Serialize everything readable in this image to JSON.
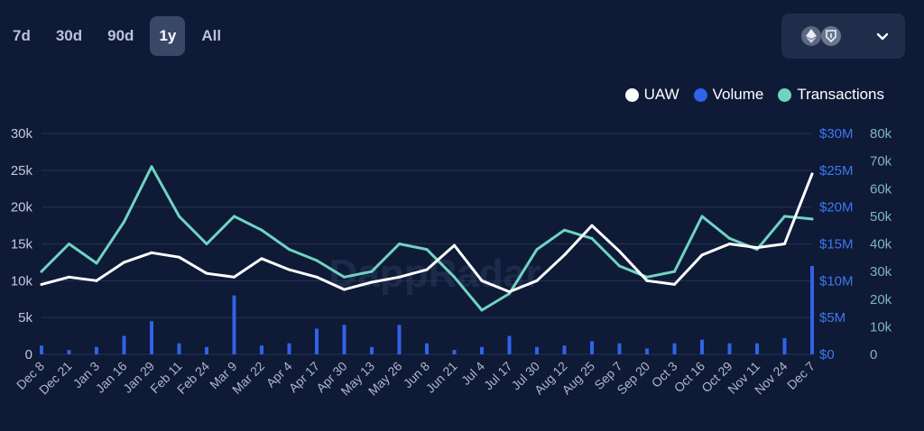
{
  "ranges": [
    {
      "label": "7d",
      "active": false
    },
    {
      "label": "30d",
      "active": false
    },
    {
      "label": "90d",
      "active": false
    },
    {
      "label": "1y",
      "active": true
    },
    {
      "label": "All",
      "active": false
    }
  ],
  "chain_icons": [
    "ethereum-icon",
    "shield-icon"
  ],
  "watermark": "DappRadar",
  "colors": {
    "uaw": "#ffffff",
    "volume": "#2f63e8",
    "transactions": "#6fd3c2",
    "background": "#0e1a36"
  },
  "chart_data": {
    "type": "line",
    "legend": [
      "UAW",
      "Volume",
      "Transactions"
    ],
    "legend_position": "top-right",
    "grid": true,
    "x_labels": [
      "Dec 8",
      "Dec 21",
      "Jan 3",
      "Jan 16",
      "Jan 29",
      "Feb 11",
      "Feb 24",
      "Mar 9",
      "Mar 22",
      "Apr 4",
      "Apr 17",
      "Apr 30",
      "May 13",
      "May 26",
      "Jun 8",
      "Jun 21",
      "Jul 4",
      "Jul 17",
      "Jul 30",
      "Aug 12",
      "Aug 25",
      "Sep 7",
      "Sep 20",
      "Oct 3",
      "Oct 16",
      "Oct 29",
      "Nov 11",
      "Nov 24",
      "Dec 7"
    ],
    "y_left": {
      "ticks": [
        "0",
        "5k",
        "10k",
        "15k",
        "20k",
        "25k",
        "30k"
      ],
      "range": [
        0,
        30000
      ]
    },
    "y_right_volume": {
      "ticks": [
        "$0",
        "$5M",
        "$10M",
        "$15M",
        "$20M",
        "$25M",
        "$30M"
      ],
      "range": [
        0,
        30000000
      ]
    },
    "y_right_transactions": {
      "ticks": [
        "0",
        "10k",
        "20k",
        "30k",
        "40k",
        "50k",
        "60k",
        "70k",
        "80k"
      ],
      "range": [
        0,
        80000
      ]
    },
    "series": [
      {
        "name": "UAW",
        "axis": "left",
        "x_index": [
          0,
          1,
          2,
          3,
          4,
          5,
          6,
          7,
          8,
          9,
          10,
          11,
          12,
          13,
          14,
          15,
          16,
          17,
          18,
          19,
          20,
          21,
          22,
          23,
          24,
          25,
          26,
          27,
          28
        ],
        "values": [
          9500,
          10500,
          10000,
          12500,
          13800,
          13200,
          11000,
          10500,
          13000,
          11500,
          10500,
          8800,
          9800,
          10500,
          11500,
          14800,
          10000,
          8500,
          10000,
          13500,
          17500,
          14000,
          10000,
          9500,
          13500,
          15000,
          14500,
          15000,
          24500
        ]
      },
      {
        "name": "Volume",
        "axis": "right_volume",
        "type": "bar",
        "x_index": [
          0,
          1,
          2,
          3,
          4,
          5,
          6,
          7,
          8,
          9,
          10,
          11,
          12,
          13,
          14,
          15,
          16,
          17,
          18,
          19,
          20,
          21,
          22,
          23,
          24,
          25,
          26,
          27,
          28
        ],
        "values": [
          1200000,
          600000,
          1000000,
          2500000,
          4500000,
          1500000,
          1000000,
          8000000,
          1200000,
          1500000,
          3500000,
          4000000,
          1000000,
          4000000,
          1500000,
          600000,
          1000000,
          2500000,
          1000000,
          1200000,
          1800000,
          1500000,
          800000,
          1500000,
          2000000,
          1500000,
          1500000,
          2200000,
          12000000
        ]
      },
      {
        "name": "Transactions",
        "axis": "right_transactions",
        "x_index": [
          0,
          1,
          2,
          3,
          4,
          5,
          6,
          7,
          8,
          9,
          10,
          11,
          12,
          13,
          14,
          15,
          16,
          17,
          18,
          19,
          20,
          21,
          22,
          23,
          24,
          25,
          26,
          27,
          28
        ],
        "values": [
          30000,
          40000,
          33000,
          48000,
          68000,
          50000,
          40000,
          50000,
          45000,
          38000,
          34000,
          28000,
          30000,
          40000,
          38000,
          28000,
          16000,
          22000,
          38000,
          45000,
          42000,
          32000,
          28000,
          30000,
          50000,
          42000,
          38000,
          50000,
          49000
        ]
      }
    ]
  }
}
